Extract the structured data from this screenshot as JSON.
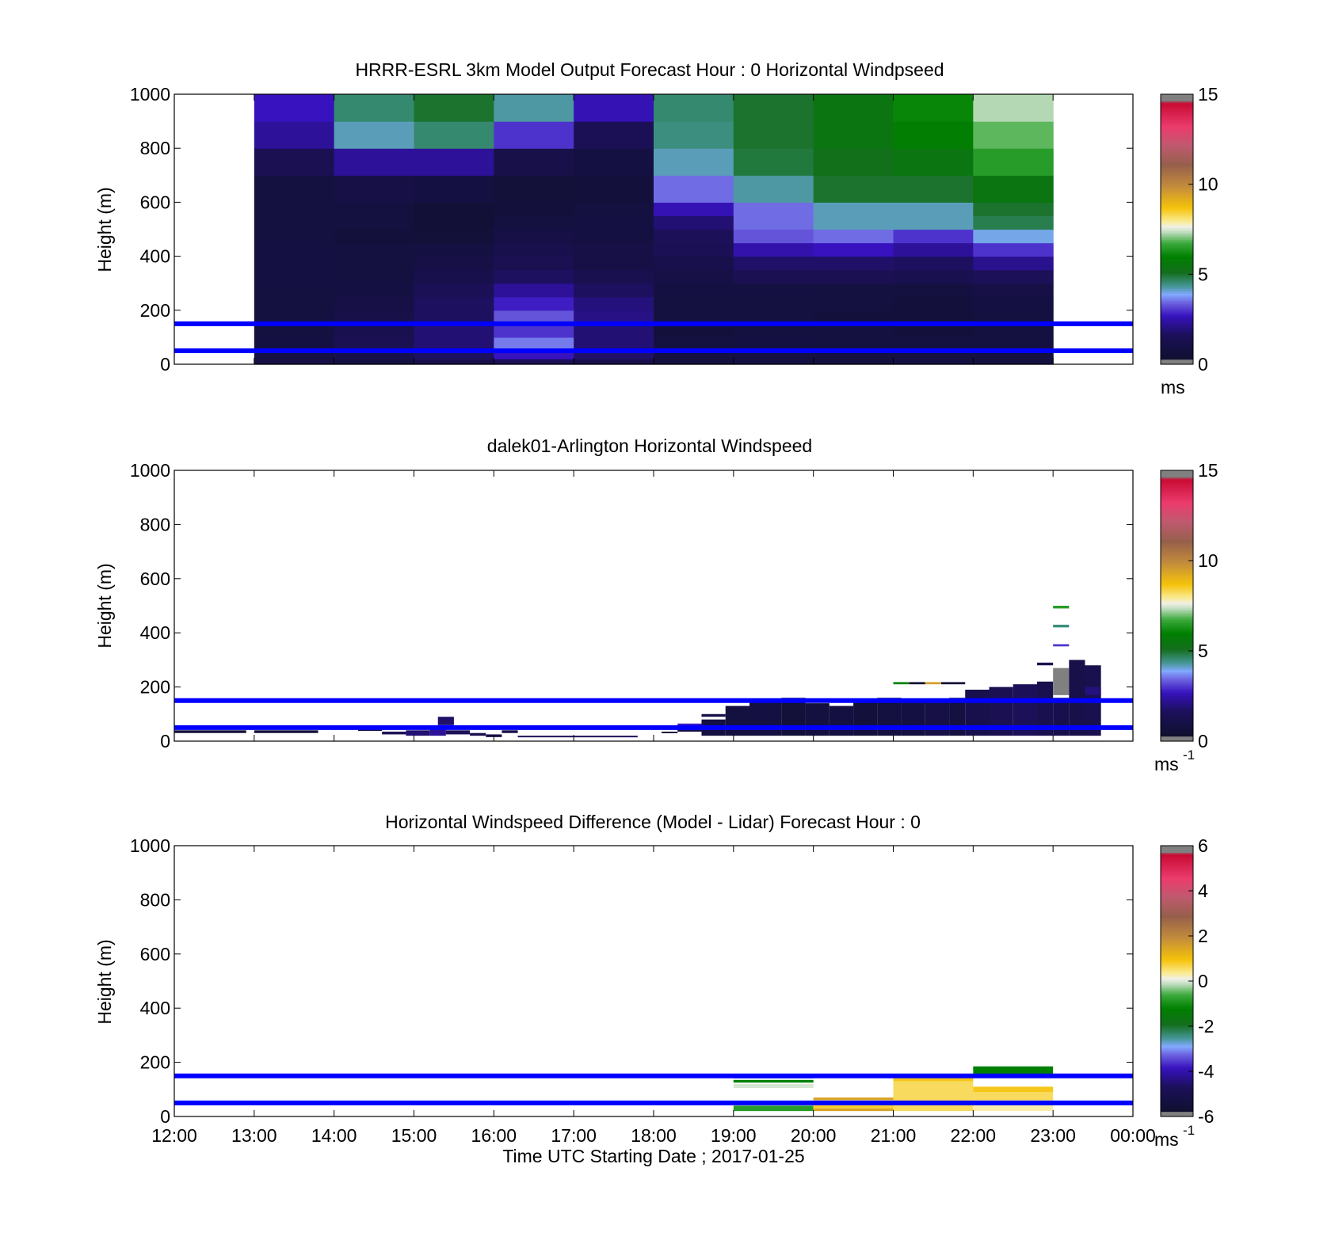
{
  "chart_data": [
    {
      "type": "heatmap",
      "title": "HRRR-ESRL 3km Model Output   Forecast Hour : 0 Horizontal Windpseed",
      "ylabel": "Height (m)",
      "xlabel": "",
      "xlim": [
        12,
        24
      ],
      "ylim": [
        0,
        1000
      ],
      "yticks": [
        "0",
        "200",
        "400",
        "600",
        "800",
        "1000"
      ],
      "colorbar": {
        "ticks": [
          "0",
          "5",
          "10",
          "15"
        ],
        "range": [
          0,
          15
        ],
        "unit": "ms",
        "unit_sup": ""
      },
      "reference_lines": [
        50,
        150
      ],
      "hours": [
        13,
        14,
        15,
        16,
        17,
        18,
        19,
        20,
        21,
        22
      ],
      "levels": [
        [
          0,
          20
        ],
        [
          20,
          50
        ],
        [
          50,
          100
        ],
        [
          100,
          150
        ],
        [
          150,
          200
        ],
        [
          200,
          250
        ],
        [
          250,
          300
        ],
        [
          300,
          350
        ],
        [
          350,
          400
        ],
        [
          400,
          450
        ],
        [
          450,
          500
        ],
        [
          500,
          550
        ],
        [
          550,
          600
        ],
        [
          600,
          700
        ],
        [
          700,
          800
        ],
        [
          800,
          900
        ],
        [
          900,
          1000
        ]
      ],
      "values": [
        [
          1.0,
          0.9,
          1.2,
          1.6,
          1.2,
          0.8,
          0.9,
          0.8,
          0.9,
          0.8
        ],
        [
          0.9,
          1.2,
          1.7,
          2.7,
          1.8,
          0.8,
          0.9,
          0.8,
          0.8,
          0.8
        ],
        [
          0.9,
          1.4,
          1.9,
          3.6,
          1.9,
          0.8,
          0.9,
          0.8,
          0.8,
          0.8
        ],
        [
          0.8,
          1.3,
          1.9,
          3.0,
          1.9,
          0.7,
          0.8,
          0.8,
          0.7,
          0.8
        ],
        [
          0.8,
          1.1,
          1.7,
          3.3,
          2.1,
          0.8,
          0.8,
          0.7,
          0.7,
          0.8
        ],
        [
          0.8,
          1.0,
          1.7,
          2.8,
          2.0,
          0.8,
          0.8,
          0.8,
          0.7,
          0.9
        ],
        [
          0.8,
          0.9,
          1.5,
          2.3,
          1.7,
          0.9,
          0.9,
          0.8,
          0.8,
          1.0
        ],
        [
          0.9,
          0.8,
          1.2,
          1.7,
          1.3,
          1.0,
          1.4,
          1.4,
          1.3,
          1.6
        ],
        [
          0.9,
          0.8,
          1.0,
          1.4,
          1.0,
          1.2,
          1.8,
          1.8,
          1.7,
          2.2
        ],
        [
          0.9,
          0.8,
          0.9,
          1.2,
          1.0,
          1.5,
          2.5,
          2.7,
          2.3,
          3.0
        ],
        [
          0.8,
          0.7,
          0.6,
          1.0,
          0.9,
          1.6,
          3.3,
          3.5,
          3.0,
          4.0
        ],
        [
          0.8,
          0.8,
          0.5,
          0.8,
          0.9,
          1.9,
          3.5,
          4.2,
          4.2,
          4.8
        ],
        [
          0.8,
          0.8,
          0.5,
          0.7,
          0.8,
          2.6,
          3.5,
          4.2,
          4.2,
          5.0
        ],
        [
          0.8,
          1.0,
          0.9,
          0.6,
          0.7,
          3.5,
          4.3,
          5.0,
          5.0,
          5.5
        ],
        [
          1.4,
          2.3,
          2.3,
          1.1,
          0.9,
          4.2,
          4.9,
          5.2,
          5.5,
          6.5
        ],
        [
          2.3,
          4.2,
          4.6,
          3.0,
          1.5,
          4.5,
          5.0,
          5.5,
          5.9,
          6.9
        ],
        [
          2.7,
          4.6,
          5.0,
          4.3,
          2.6,
          4.6,
          5.0,
          5.5,
          6.1,
          7.3
        ]
      ]
    },
    {
      "type": "heatmap",
      "title": "dalek01-Arlington  Horizontal Windspeed",
      "ylabel": "Height (m)",
      "xlabel": "",
      "xlim": [
        12,
        24
      ],
      "ylim": [
        0,
        1000
      ],
      "yticks": [
        "0",
        "200",
        "400",
        "600",
        "800",
        "1000"
      ],
      "colorbar": {
        "ticks": [
          "0",
          "5",
          "10",
          "15"
        ],
        "range": [
          0,
          15
        ],
        "unit": "ms",
        "unit_sup": "-1"
      },
      "reference_lines": [
        50,
        150
      ],
      "cells": [
        [
          12.0,
          12.9,
          30,
          40,
          0.7
        ],
        [
          13.0,
          13.8,
          30,
          40,
          0.7
        ],
        [
          14.3,
          14.6,
          38,
          48,
          1.2
        ],
        [
          14.6,
          14.9,
          25,
          35,
          1.5
        ],
        [
          14.9,
          15.2,
          20,
          40,
          1.9
        ],
        [
          15.2,
          15.4,
          20,
          45,
          2.3
        ],
        [
          15.3,
          15.5,
          50,
          60,
          3.5
        ],
        [
          15.3,
          15.5,
          60,
          90,
          1.8
        ],
        [
          15.4,
          15.7,
          25,
          40,
          1.6
        ],
        [
          15.7,
          15.9,
          20,
          30,
          1.3
        ],
        [
          15.9,
          16.1,
          15,
          25,
          1.1
        ],
        [
          16.1,
          16.3,
          30,
          40,
          1.1
        ],
        [
          16.3,
          17.8,
          15,
          20,
          1.6
        ],
        [
          18.1,
          18.3,
          30,
          35,
          0.5
        ],
        [
          18.3,
          18.6,
          35,
          50,
          1.0
        ],
        [
          18.3,
          18.6,
          55,
          65,
          2.8
        ],
        [
          18.6,
          18.9,
          20,
          80,
          0.9
        ],
        [
          18.6,
          18.9,
          90,
          100,
          1.2
        ],
        [
          18.9,
          19.2,
          20,
          130,
          0.8
        ],
        [
          19.2,
          19.6,
          20,
          150,
          0.9
        ],
        [
          19.6,
          19.9,
          20,
          160,
          0.6
        ],
        [
          19.9,
          20.2,
          20,
          140,
          0.8
        ],
        [
          20.2,
          20.5,
          20,
          130,
          0.9
        ],
        [
          20.5,
          20.8,
          20,
          150,
          0.7
        ],
        [
          20.8,
          21.1,
          20,
          160,
          0.8
        ],
        [
          21.0,
          21.2,
          210,
          218,
          6.0
        ],
        [
          21.2,
          21.4,
          210,
          218,
          0.5
        ],
        [
          21.1,
          21.4,
          20,
          150,
          0.9
        ],
        [
          21.4,
          21.6,
          210,
          218,
          9.5
        ],
        [
          21.4,
          21.7,
          20,
          150,
          1.0
        ],
        [
          21.6,
          21.9,
          210,
          218,
          0.6
        ],
        [
          21.7,
          21.9,
          20,
          160,
          0.8
        ],
        [
          21.9,
          22.2,
          20,
          190,
          1.2
        ],
        [
          22.2,
          22.5,
          20,
          200,
          1.4
        ],
        [
          22.5,
          22.8,
          20,
          210,
          1.6
        ],
        [
          22.8,
          23.0,
          20,
          220,
          1.3
        ],
        [
          22.8,
          23.0,
          280,
          290,
          1.5
        ],
        [
          23.0,
          23.2,
          490,
          500,
          6.5
        ],
        [
          23.0,
          23.2,
          420,
          430,
          4.5
        ],
        [
          23.0,
          23.2,
          350,
          358,
          3.0
        ],
        [
          23.0,
          23.2,
          170,
          270,
          15.5
        ],
        [
          23.0,
          23.2,
          20,
          160,
          1.2
        ],
        [
          23.2,
          23.4,
          20,
          300,
          1.1
        ],
        [
          23.4,
          23.6,
          20,
          280,
          1.3
        ],
        [
          23.4,
          23.6,
          170,
          200,
          2.0
        ]
      ]
    },
    {
      "type": "heatmap",
      "title": "Horizontal Windspeed Difference (Model - Lidar) Forecast Hour : 0",
      "ylabel": "Height (m)",
      "xlabel": "Time UTC  Starting Date ; 2017-01-25",
      "xlim": [
        12,
        24
      ],
      "ylim": [
        0,
        1000
      ],
      "yticks": [
        "0",
        "200",
        "400",
        "600",
        "800",
        "1000"
      ],
      "xticks": [
        "12:00",
        "13:00",
        "14:00",
        "15:00",
        "16:00",
        "17:00",
        "18:00",
        "19:00",
        "20:00",
        "21:00",
        "22:00",
        "23:00",
        "00:00"
      ],
      "colorbar": {
        "ticks": [
          "-6",
          "-4",
          "-2",
          "0",
          "2",
          "4",
          "6"
        ],
        "range": [
          -6,
          6
        ],
        "unit": "ms",
        "unit_sup": "-1"
      },
      "reference_lines": [
        50,
        150
      ],
      "cells": [
        [
          19.0,
          20.0,
          20,
          40,
          -0.8
        ],
        [
          19.0,
          20.0,
          45,
          55,
          -1.0
        ],
        [
          19.0,
          20.0,
          105,
          120,
          0.0
        ],
        [
          19.0,
          20.0,
          125,
          135,
          -1.2
        ],
        [
          19.0,
          20.0,
          140,
          150,
          -2.8
        ],
        [
          20.0,
          21.0,
          20,
          30,
          1.5
        ],
        [
          20.0,
          21.0,
          30,
          55,
          0.8
        ],
        [
          20.0,
          21.0,
          60,
          70,
          1.5
        ],
        [
          21.0,
          22.0,
          20,
          130,
          0.6
        ],
        [
          21.0,
          22.0,
          130,
          145,
          0.9
        ],
        [
          22.0,
          23.0,
          20,
          60,
          0.3
        ],
        [
          22.0,
          23.0,
          60,
          90,
          0.6
        ],
        [
          22.0,
          23.0,
          90,
          110,
          0.9
        ],
        [
          22.0,
          23.0,
          150,
          185,
          -1.2
        ]
      ]
    }
  ]
}
